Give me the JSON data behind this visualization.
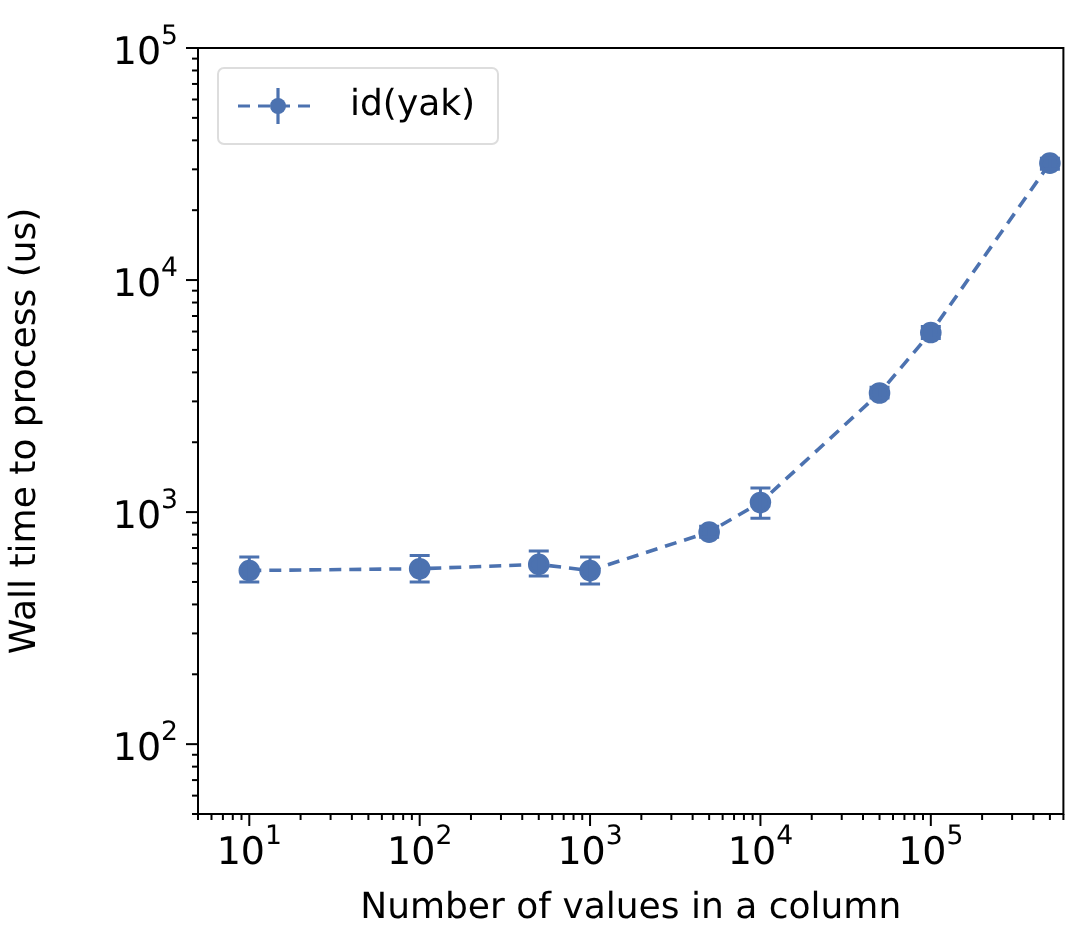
{
  "chart_data": {
    "type": "line",
    "xlabel": "Number of values in a column",
    "ylabel": "Wall time to process (us)",
    "log": "xy",
    "x": [
      10,
      100,
      500,
      1000,
      5000,
      10000,
      50000,
      100000,
      500000
    ],
    "series": [
      {
        "name": "id(yak)",
        "color": "#4c72b0",
        "values": [
          560,
          570,
          595,
          560,
          820,
          1100,
          3260,
          5940,
          31900
        ],
        "errors": [
          [
            500,
            640
          ],
          [
            500,
            650
          ],
          [
            530,
            680
          ],
          [
            490,
            640
          ],
          [
            780,
            870
          ],
          [
            940,
            1270
          ],
          [
            3100,
            3450
          ],
          [
            5600,
            6300
          ],
          [
            30000,
            33500
          ]
        ]
      }
    ],
    "xlim": [
      5,
      600000
    ],
    "ylim": [
      50,
      100000
    ],
    "xticks": [
      {
        "value": 10,
        "label": "10$^{1}$"
      },
      {
        "value": 100,
        "label": "10$^{2}$"
      },
      {
        "value": 1000,
        "label": "10$^{3}$"
      },
      {
        "value": 10000,
        "label": "10$^{4}$"
      },
      {
        "value": 100000,
        "label": "10$^{5}$"
      }
    ],
    "yticks": [
      {
        "value": 100,
        "label": "10$^{2}$"
      },
      {
        "value": 1000,
        "label": "10$^{3}$"
      },
      {
        "value": 10000,
        "label": "10$^{4}$"
      },
      {
        "value": 100000,
        "label": "10$^{5}$"
      }
    ],
    "grid": false,
    "legend": "top left",
    "marker": "circle",
    "line_style": "dashed"
  }
}
